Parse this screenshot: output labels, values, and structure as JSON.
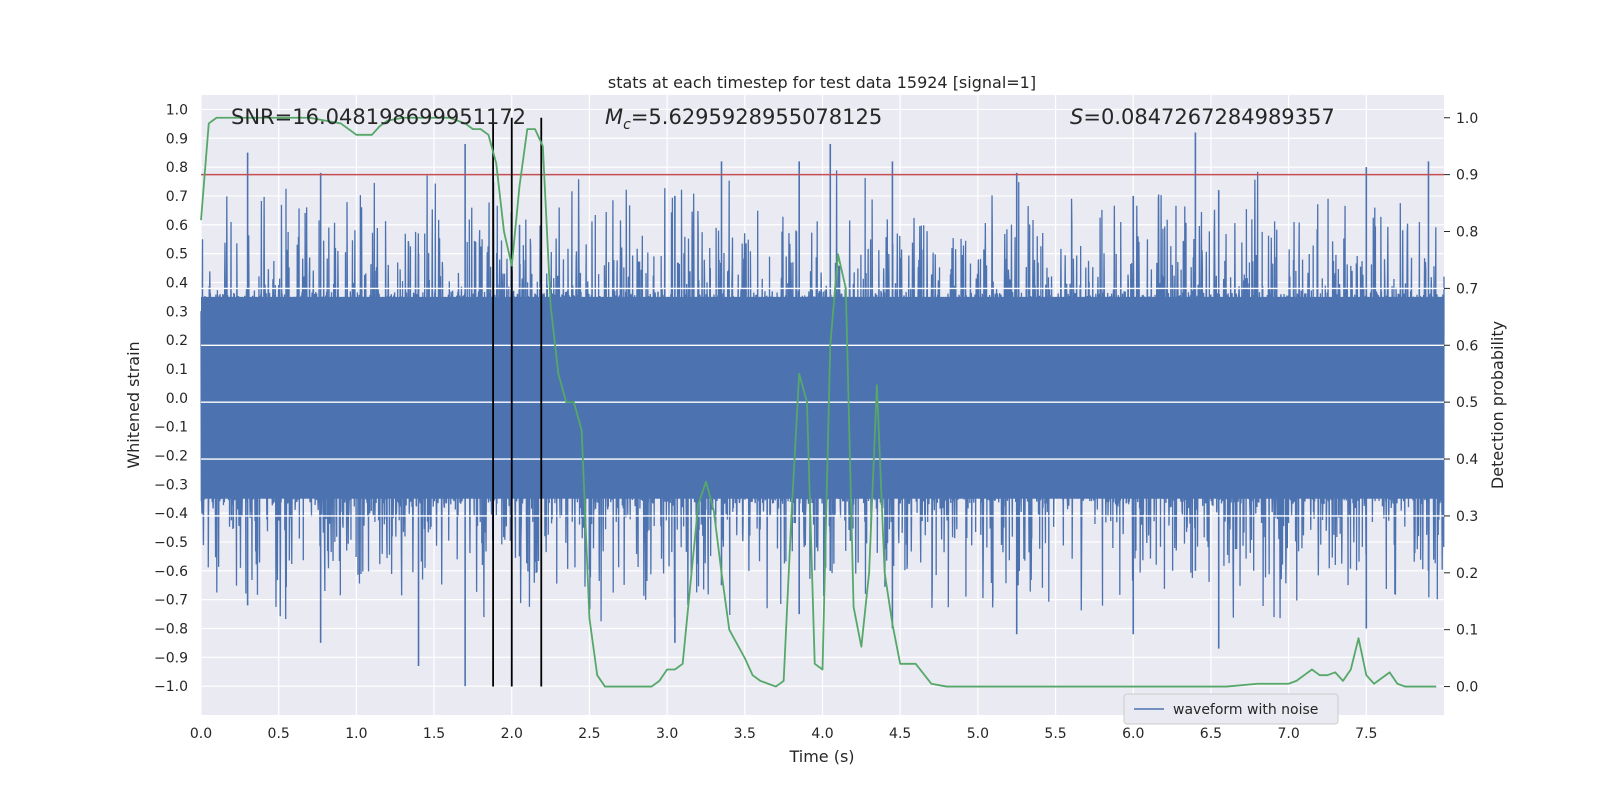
{
  "chart_data": {
    "type": "line",
    "title": "stats at each timestep for test data 15924 [signal=1]",
    "xlabel": "Time (s)",
    "ylabel": "Whitened strain",
    "ylabel_right": "Detection probability",
    "xlim": [
      0.0,
      8.0
    ],
    "ylim": [
      -1.1,
      1.05
    ],
    "ylim_right": [
      -0.05,
      1.04
    ],
    "x_ticks": [
      "0.0",
      "0.5",
      "1.0",
      "1.5",
      "2.0",
      "2.5",
      "3.0",
      "3.5",
      "4.0",
      "4.5",
      "5.0",
      "5.5",
      "6.0",
      "6.5",
      "7.0",
      "7.5"
    ],
    "y_ticks": [
      "1.0",
      "0.9",
      "0.8",
      "0.7",
      "0.6",
      "0.5",
      "0.4",
      "0.3",
      "0.2",
      "0.1",
      "0.0",
      "−0.1",
      "−0.2",
      "−0.3",
      "−0.4",
      "−0.5",
      "−0.6",
      "−0.7",
      "−0.8",
      "−0.9",
      "−1.0"
    ],
    "y_right_ticks": [
      "1.0",
      "0.9",
      "0.8",
      "0.7",
      "0.6",
      "0.5",
      "0.4",
      "0.3",
      "0.2",
      "0.1",
      "0.0"
    ],
    "grid": true,
    "legend": {
      "placement": "lower-right",
      "entries": [
        "waveform with noise"
      ]
    },
    "annotations": {
      "snr": "SNR=16.048198699951172",
      "mc_symbol": "M",
      "mc_sub": "c",
      "mc_value": "=5.6295928955078125",
      "s_symbol": "S",
      "s_value": "=0.0847267284989357"
    },
    "threshold": {
      "axis": "right",
      "value": 0.9,
      "color": "#c44e52"
    },
    "vlines": {
      "x": [
        1.88,
        2.0,
        2.19
      ],
      "color": "#000000"
    },
    "waveform": {
      "name": "waveform with noise",
      "color": "#4c72b0",
      "samples": 4096,
      "core_amplitude": 0.35,
      "spikes": [
        [
          0.3,
          0.85,
          -0.72
        ],
        [
          0.77,
          0.78,
          -0.85
        ],
        [
          1.4,
          0.5,
          -0.93
        ],
        [
          1.7,
          0.88,
          -1.0
        ],
        [
          2.05,
          0.6,
          -0.55
        ],
        [
          3.05,
          0.7,
          -0.85
        ],
        [
          3.35,
          0.82,
          -0.65
        ],
        [
          3.85,
          0.82,
          -0.75
        ],
        [
          4.05,
          0.88,
          -0.6
        ],
        [
          4.45,
          0.82,
          -0.8
        ],
        [
          5.25,
          0.78,
          -0.82
        ],
        [
          6.0,
          0.7,
          -0.82
        ],
        [
          6.4,
          0.92,
          -0.6
        ],
        [
          6.55,
          0.72,
          -0.87
        ],
        [
          7.5,
          0.8,
          -0.8
        ],
        [
          7.9,
          0.82,
          -0.6
        ]
      ]
    },
    "series": [
      {
        "name": "",
        "axis": "right",
        "color": "#55a868",
        "x": [
          0.0,
          0.05,
          0.1,
          0.2,
          0.3,
          0.4,
          0.5,
          0.6,
          0.7,
          0.8,
          0.9,
          1.0,
          1.05,
          1.1,
          1.15,
          1.2,
          1.3,
          1.4,
          1.5,
          1.6,
          1.7,
          1.75,
          1.8,
          1.85,
          1.9,
          1.95,
          2.0,
          2.05,
          2.1,
          2.15,
          2.2,
          2.25,
          2.3,
          2.35,
          2.4,
          2.45,
          2.5,
          2.55,
          2.6,
          2.7,
          2.8,
          2.9,
          2.95,
          3.0,
          3.05,
          3.1,
          3.15,
          3.2,
          3.25,
          3.3,
          3.35,
          3.4,
          3.5,
          3.55,
          3.6,
          3.65,
          3.7,
          3.75,
          3.8,
          3.85,
          3.9,
          3.95,
          4.0,
          4.05,
          4.1,
          4.15,
          4.2,
          4.25,
          4.3,
          4.35,
          4.4,
          4.45,
          4.5,
          4.55,
          4.6,
          4.7,
          4.8,
          4.9,
          5.0,
          5.2,
          5.4,
          5.6,
          5.8,
          6.0,
          6.1,
          6.2,
          6.4,
          6.6,
          6.8,
          7.0,
          7.05,
          7.1,
          7.15,
          7.2,
          7.25,
          7.3,
          7.35,
          7.4,
          7.45,
          7.5,
          7.55,
          7.6,
          7.65,
          7.7,
          7.75,
          7.8,
          7.85,
          7.95
        ],
        "values": [
          0.82,
          0.99,
          1.0,
          1.0,
          1.0,
          1.0,
          1.0,
          1.0,
          1.0,
          0.995,
          0.99,
          0.97,
          0.97,
          0.97,
          0.985,
          0.995,
          1.0,
          1.0,
          1.0,
          1.0,
          0.99,
          0.98,
          0.98,
          0.97,
          0.92,
          0.8,
          0.74,
          0.88,
          0.98,
          0.98,
          0.95,
          0.67,
          0.55,
          0.5,
          0.5,
          0.45,
          0.12,
          0.02,
          0.0,
          0.0,
          0.0,
          0.0,
          0.01,
          0.03,
          0.03,
          0.04,
          0.18,
          0.32,
          0.36,
          0.31,
          0.2,
          0.1,
          0.05,
          0.02,
          0.01,
          0.005,
          0.0,
          0.01,
          0.3,
          0.55,
          0.5,
          0.04,
          0.03,
          0.6,
          0.76,
          0.7,
          0.14,
          0.07,
          0.2,
          0.53,
          0.2,
          0.11,
          0.04,
          0.04,
          0.04,
          0.005,
          0.0,
          0.0,
          0.0,
          0.0,
          0.0,
          0.0,
          0.0,
          0.0,
          0.0,
          0.0,
          0.0,
          0.0,
          0.005,
          0.005,
          0.01,
          0.02,
          0.03,
          0.02,
          0.02,
          0.025,
          0.01,
          0.03,
          0.085,
          0.02,
          0.005,
          0.015,
          0.025,
          0.005,
          0.0,
          0.0,
          0.0,
          0.0
        ]
      }
    ]
  }
}
